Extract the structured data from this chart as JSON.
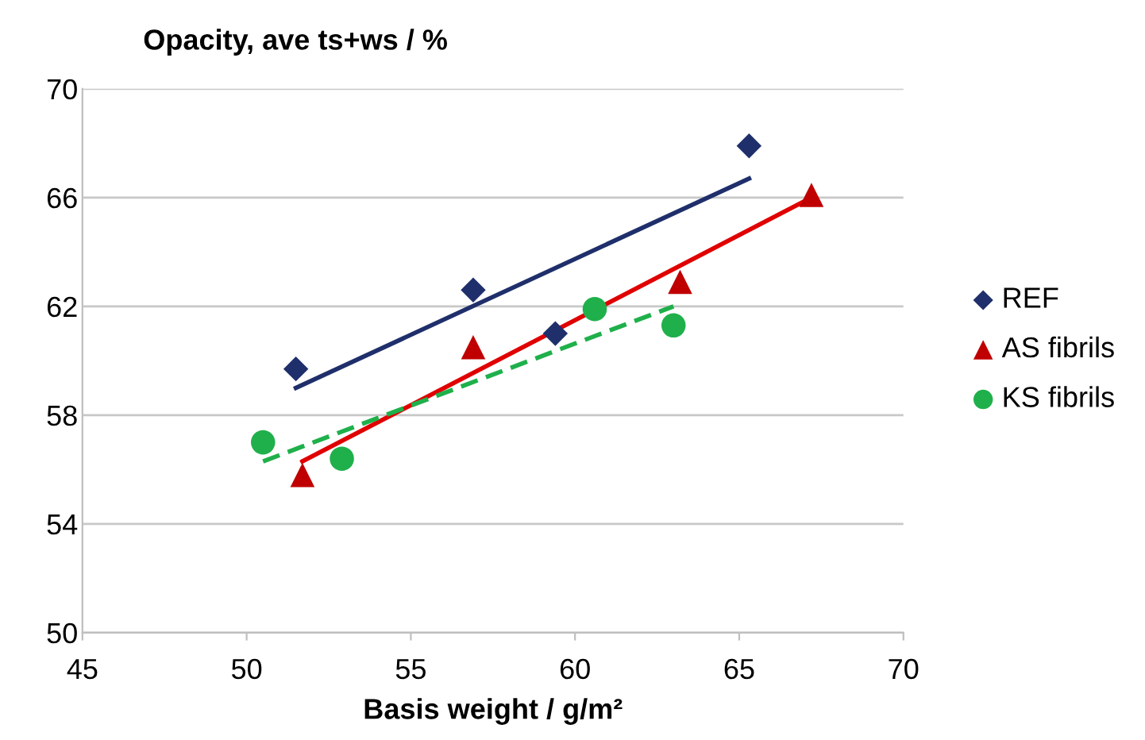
{
  "chart_data": {
    "type": "scatter",
    "ylabel": "Opacity, ave ts+ws / %",
    "xlabel": "Basis weight / g/m²",
    "xlim": [
      45,
      70
    ],
    "xticks": [
      45,
      50,
      55,
      60,
      65,
      70
    ],
    "ylim": [
      50,
      70
    ],
    "yticks": [
      50,
      54,
      58,
      62,
      66,
      70
    ],
    "grid": "y",
    "legend": "right",
    "series": [
      {
        "name": "REF",
        "marker": "diamond",
        "color": "#1f2f6b",
        "x": [
          51.5,
          56.9,
          59.4,
          65.3
        ],
        "values": [
          59.7,
          62.6,
          61.0,
          67.9
        ]
      },
      {
        "name": "AS fibrils",
        "marker": "triangle",
        "color": "#c00000",
        "x": [
          51.7,
          56.9,
          63.2,
          67.2
        ],
        "values": [
          55.8,
          60.5,
          62.9,
          66.1
        ]
      },
      {
        "name": "KS fibrils",
        "marker": "circle",
        "color": "#1fb04b",
        "x": [
          50.5,
          52.9,
          60.6,
          63.0
        ],
        "values": [
          57.0,
          56.4,
          61.9,
          61.3
        ]
      },
      {
        "type": "line",
        "marker": "none",
        "line_style": "solid",
        "color": "#1f2f6b",
        "x": [
          51.5,
          65.3
        ],
        "values": [
          59.0,
          66.7
        ]
      },
      {
        "type": "line",
        "marker": "none",
        "line_style": "solid",
        "color": "#e00000",
        "x": [
          51.7,
          67.2
        ],
        "values": [
          56.3,
          66.0
        ]
      },
      {
        "type": "line",
        "marker": "none",
        "line_style": "dashed",
        "color": "#1fb04b",
        "x": [
          50.5,
          63.0
        ],
        "values": [
          56.3,
          62.0
        ]
      }
    ]
  }
}
